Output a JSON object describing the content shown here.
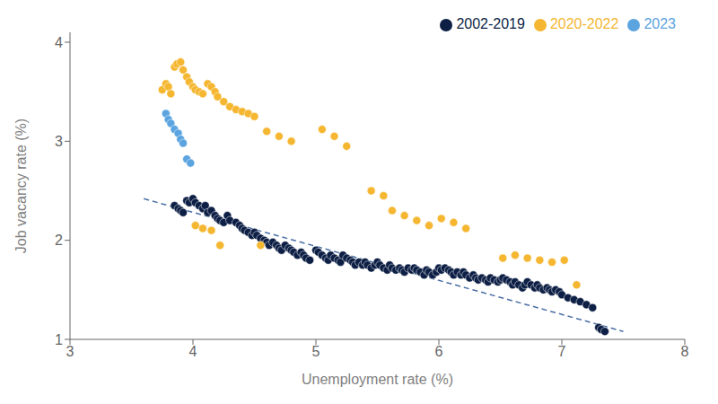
{
  "chart_data": {
    "type": "scatter",
    "xlabel": "Unemployment rate (%)",
    "ylabel": "Job vacancy rate (%)",
    "xlim": [
      3,
      8
    ],
    "ylim": [
      1,
      4.1
    ],
    "xticks": [
      3,
      4,
      5,
      6,
      7,
      8
    ],
    "yticks": [
      1,
      2,
      3,
      4
    ],
    "grid": false,
    "legend": "upper right",
    "series": [
      {
        "name": "2002-2019",
        "type": "scatter",
        "marker": "circle",
        "color": "#0d1f45",
        "values": [
          [
            3.85,
            2.35
          ],
          [
            3.88,
            2.32
          ],
          [
            3.9,
            2.3
          ],
          [
            3.92,
            2.28
          ],
          [
            3.95,
            2.4
          ],
          [
            3.97,
            2.38
          ],
          [
            4.0,
            2.42
          ],
          [
            4.02,
            2.38
          ],
          [
            4.05,
            2.35
          ],
          [
            4.08,
            2.32
          ],
          [
            4.1,
            2.35
          ],
          [
            4.12,
            2.28
          ],
          [
            4.15,
            2.3
          ],
          [
            4.18,
            2.25
          ],
          [
            4.2,
            2.22
          ],
          [
            4.22,
            2.2
          ],
          [
            4.25,
            2.18
          ],
          [
            4.28,
            2.25
          ],
          [
            4.3,
            2.2
          ],
          [
            4.35,
            2.18
          ],
          [
            4.38,
            2.15
          ],
          [
            4.4,
            2.12
          ],
          [
            4.42,
            2.1
          ],
          [
            4.45,
            2.08
          ],
          [
            4.48,
            2.05
          ],
          [
            4.5,
            2.08
          ],
          [
            4.52,
            2.05
          ],
          [
            4.55,
            2.02
          ],
          [
            4.58,
            2.0
          ],
          [
            4.6,
            1.98
          ],
          [
            4.62,
            1.95
          ],
          [
            4.65,
            1.98
          ],
          [
            4.68,
            1.95
          ],
          [
            4.7,
            1.92
          ],
          [
            4.72,
            1.9
          ],
          [
            4.75,
            1.95
          ],
          [
            4.78,
            1.92
          ],
          [
            4.8,
            1.9
          ],
          [
            4.82,
            1.88
          ],
          [
            4.85,
            1.85
          ],
          [
            4.88,
            1.88
          ],
          [
            4.9,
            1.85
          ],
          [
            4.92,
            1.82
          ],
          [
            4.95,
            1.8
          ],
          [
            5.0,
            1.9
          ],
          [
            5.02,
            1.88
          ],
          [
            5.05,
            1.85
          ],
          [
            5.08,
            1.82
          ],
          [
            5.1,
            1.8
          ],
          [
            5.12,
            1.85
          ],
          [
            5.15,
            1.82
          ],
          [
            5.18,
            1.8
          ],
          [
            5.2,
            1.78
          ],
          [
            5.22,
            1.85
          ],
          [
            5.25,
            1.82
          ],
          [
            5.28,
            1.8
          ],
          [
            5.3,
            1.78
          ],
          [
            5.32,
            1.75
          ],
          [
            5.35,
            1.78
          ],
          [
            5.38,
            1.75
          ],
          [
            5.4,
            1.78
          ],
          [
            5.42,
            1.75
          ],
          [
            5.45,
            1.72
          ],
          [
            5.48,
            1.75
          ],
          [
            5.5,
            1.78
          ],
          [
            5.52,
            1.75
          ],
          [
            5.55,
            1.72
          ],
          [
            5.58,
            1.7
          ],
          [
            5.6,
            1.75
          ],
          [
            5.62,
            1.72
          ],
          [
            5.65,
            1.7
          ],
          [
            5.68,
            1.72
          ],
          [
            5.7,
            1.7
          ],
          [
            5.72,
            1.68
          ],
          [
            5.75,
            1.72
          ],
          [
            5.78,
            1.7
          ],
          [
            5.8,
            1.72
          ],
          [
            5.82,
            1.7
          ],
          [
            5.85,
            1.68
          ],
          [
            5.88,
            1.65
          ],
          [
            5.9,
            1.7
          ],
          [
            5.92,
            1.68
          ],
          [
            5.95,
            1.65
          ],
          [
            5.98,
            1.68
          ],
          [
            6.0,
            1.72
          ],
          [
            6.02,
            1.7
          ],
          [
            6.05,
            1.72
          ],
          [
            6.08,
            1.7
          ],
          [
            6.1,
            1.68
          ],
          [
            6.12,
            1.65
          ],
          [
            6.15,
            1.68
          ],
          [
            6.18,
            1.65
          ],
          [
            6.2,
            1.68
          ],
          [
            6.22,
            1.65
          ],
          [
            6.25,
            1.62
          ],
          [
            6.28,
            1.65
          ],
          [
            6.3,
            1.62
          ],
          [
            6.32,
            1.6
          ],
          [
            6.35,
            1.62
          ],
          [
            6.38,
            1.6
          ],
          [
            6.4,
            1.58
          ],
          [
            6.42,
            1.62
          ],
          [
            6.45,
            1.6
          ],
          [
            6.48,
            1.58
          ],
          [
            6.5,
            1.6
          ],
          [
            6.52,
            1.62
          ],
          [
            6.55,
            1.6
          ],
          [
            6.58,
            1.58
          ],
          [
            6.6,
            1.55
          ],
          [
            6.62,
            1.58
          ],
          [
            6.65,
            1.55
          ],
          [
            6.68,
            1.52
          ],
          [
            6.7,
            1.55
          ],
          [
            6.72,
            1.58
          ],
          [
            6.75,
            1.55
          ],
          [
            6.78,
            1.52
          ],
          [
            6.8,
            1.55
          ],
          [
            6.82,
            1.52
          ],
          [
            6.85,
            1.5
          ],
          [
            6.88,
            1.52
          ],
          [
            6.9,
            1.5
          ],
          [
            6.92,
            1.48
          ],
          [
            6.95,
            1.5
          ],
          [
            6.98,
            1.48
          ],
          [
            7.0,
            1.45
          ],
          [
            7.05,
            1.42
          ],
          [
            7.1,
            1.4
          ],
          [
            7.15,
            1.38
          ],
          [
            7.2,
            1.35
          ],
          [
            7.25,
            1.32
          ],
          [
            7.3,
            1.12
          ],
          [
            7.32,
            1.1
          ],
          [
            7.35,
            1.08
          ]
        ]
      },
      {
        "name": "2020-2022",
        "type": "scatter",
        "marker": "circle",
        "color": "#f5b731",
        "values": [
          [
            3.75,
            3.52
          ],
          [
            3.78,
            3.58
          ],
          [
            3.8,
            3.55
          ],
          [
            3.82,
            3.48
          ],
          [
            3.85,
            3.75
          ],
          [
            3.87,
            3.78
          ],
          [
            3.9,
            3.8
          ],
          [
            3.92,
            3.72
          ],
          [
            3.95,
            3.65
          ],
          [
            3.97,
            3.6
          ],
          [
            4.0,
            3.55
          ],
          [
            4.02,
            3.52
          ],
          [
            4.05,
            3.5
          ],
          [
            4.08,
            3.48
          ],
          [
            4.12,
            3.58
          ],
          [
            4.15,
            3.55
          ],
          [
            4.18,
            3.5
          ],
          [
            4.2,
            3.45
          ],
          [
            4.25,
            3.4
          ],
          [
            4.3,
            3.35
          ],
          [
            4.35,
            3.32
          ],
          [
            4.4,
            3.3
          ],
          [
            4.45,
            3.28
          ],
          [
            4.5,
            3.25
          ],
          [
            4.6,
            3.1
          ],
          [
            4.7,
            3.05
          ],
          [
            4.8,
            3.0
          ],
          [
            5.05,
            3.12
          ],
          [
            5.15,
            3.05
          ],
          [
            5.25,
            2.95
          ],
          [
            5.45,
            2.5
          ],
          [
            5.55,
            2.45
          ],
          [
            5.62,
            2.3
          ],
          [
            5.72,
            2.25
          ],
          [
            5.82,
            2.2
          ],
          [
            5.92,
            2.15
          ],
          [
            6.02,
            2.22
          ],
          [
            6.12,
            2.18
          ],
          [
            6.22,
            2.12
          ],
          [
            6.52,
            1.82
          ],
          [
            6.62,
            1.85
          ],
          [
            6.72,
            1.82
          ],
          [
            6.82,
            1.8
          ],
          [
            6.92,
            1.78
          ],
          [
            7.02,
            1.8
          ],
          [
            7.12,
            1.55
          ],
          [
            4.02,
            2.15
          ],
          [
            4.08,
            2.12
          ],
          [
            4.15,
            2.1
          ],
          [
            4.22,
            1.95
          ],
          [
            4.55,
            1.95
          ]
        ]
      },
      {
        "name": "2023",
        "type": "scatter",
        "marker": "circle",
        "color": "#5ba4e0",
        "values": [
          [
            3.78,
            3.28
          ],
          [
            3.8,
            3.22
          ],
          [
            3.82,
            3.18
          ],
          [
            3.85,
            3.12
          ],
          [
            3.88,
            3.08
          ],
          [
            3.9,
            3.02
          ],
          [
            3.92,
            2.98
          ],
          [
            3.95,
            2.82
          ],
          [
            3.98,
            2.78
          ]
        ]
      },
      {
        "type": "line",
        "line_style": "dashed",
        "color": "#4a6fa5",
        "values": [
          [
            3.6,
            2.42
          ],
          [
            7.5,
            1.08
          ]
        ]
      }
    ]
  }
}
